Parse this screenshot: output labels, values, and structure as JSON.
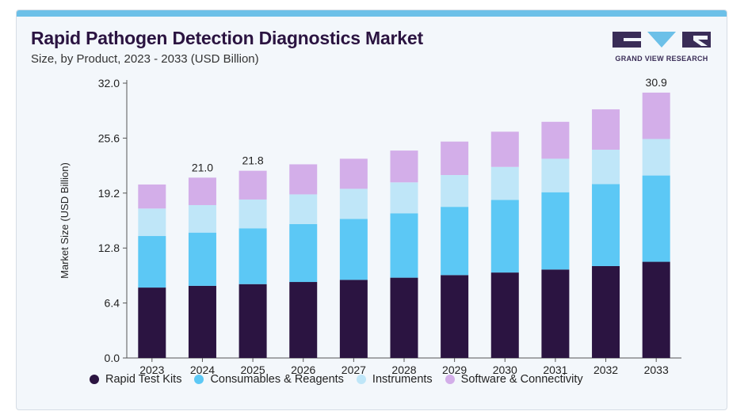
{
  "header": {
    "title": "Rapid Pathogen Detection Diagnostics Market",
    "subtitle": "Size, by Product, 2023 - 2033 (USD Billion)"
  },
  "logo": {
    "text": "GRAND VIEW RESEARCH",
    "color": "#3a2d57",
    "accent": "#6cc0e8"
  },
  "chart_data": {
    "type": "bar",
    "stacked": true,
    "title": "Rapid Pathogen Detection Diagnostics Market",
    "subtitle": "Size, by Product, 2023 - 2033 (USD Billion)",
    "xlabel": "",
    "ylabel": "Market Size (USD Billion)",
    "ylim": [
      0,
      32.0
    ],
    "yticks": [
      "0.0",
      "6.4",
      "12.8",
      "19.2",
      "25.6",
      "32.0"
    ],
    "categories": [
      "2023",
      "2024",
      "2025",
      "2026",
      "2027",
      "2028",
      "2029",
      "2030",
      "2031",
      "2032",
      "2033"
    ],
    "series": [
      {
        "name": "Rapid Test Kits",
        "color": "#2b1441",
        "values": [
          8.2,
          8.4,
          8.6,
          8.85,
          9.1,
          9.35,
          9.65,
          9.95,
          10.3,
          10.7,
          11.2
        ]
      },
      {
        "name": "Consumables & Reagents",
        "color": "#5cc8f5",
        "values": [
          6.0,
          6.2,
          6.5,
          6.75,
          7.1,
          7.5,
          7.95,
          8.45,
          9.0,
          9.55,
          10.05
        ]
      },
      {
        "name": "Instruments",
        "color": "#bfe6f8",
        "values": [
          3.2,
          3.2,
          3.35,
          3.45,
          3.5,
          3.6,
          3.7,
          3.85,
          3.9,
          4.0,
          4.25
        ]
      },
      {
        "name": "Software & Connectivity",
        "color": "#d3aee9",
        "values": [
          2.8,
          3.2,
          3.35,
          3.5,
          3.5,
          3.7,
          3.9,
          4.1,
          4.3,
          4.7,
          5.4
        ]
      }
    ],
    "data_labels": {
      "2024": "21.0",
      "2025": "21.8",
      "2033": "30.9"
    },
    "grid": false,
    "legend_position": "bottom"
  }
}
